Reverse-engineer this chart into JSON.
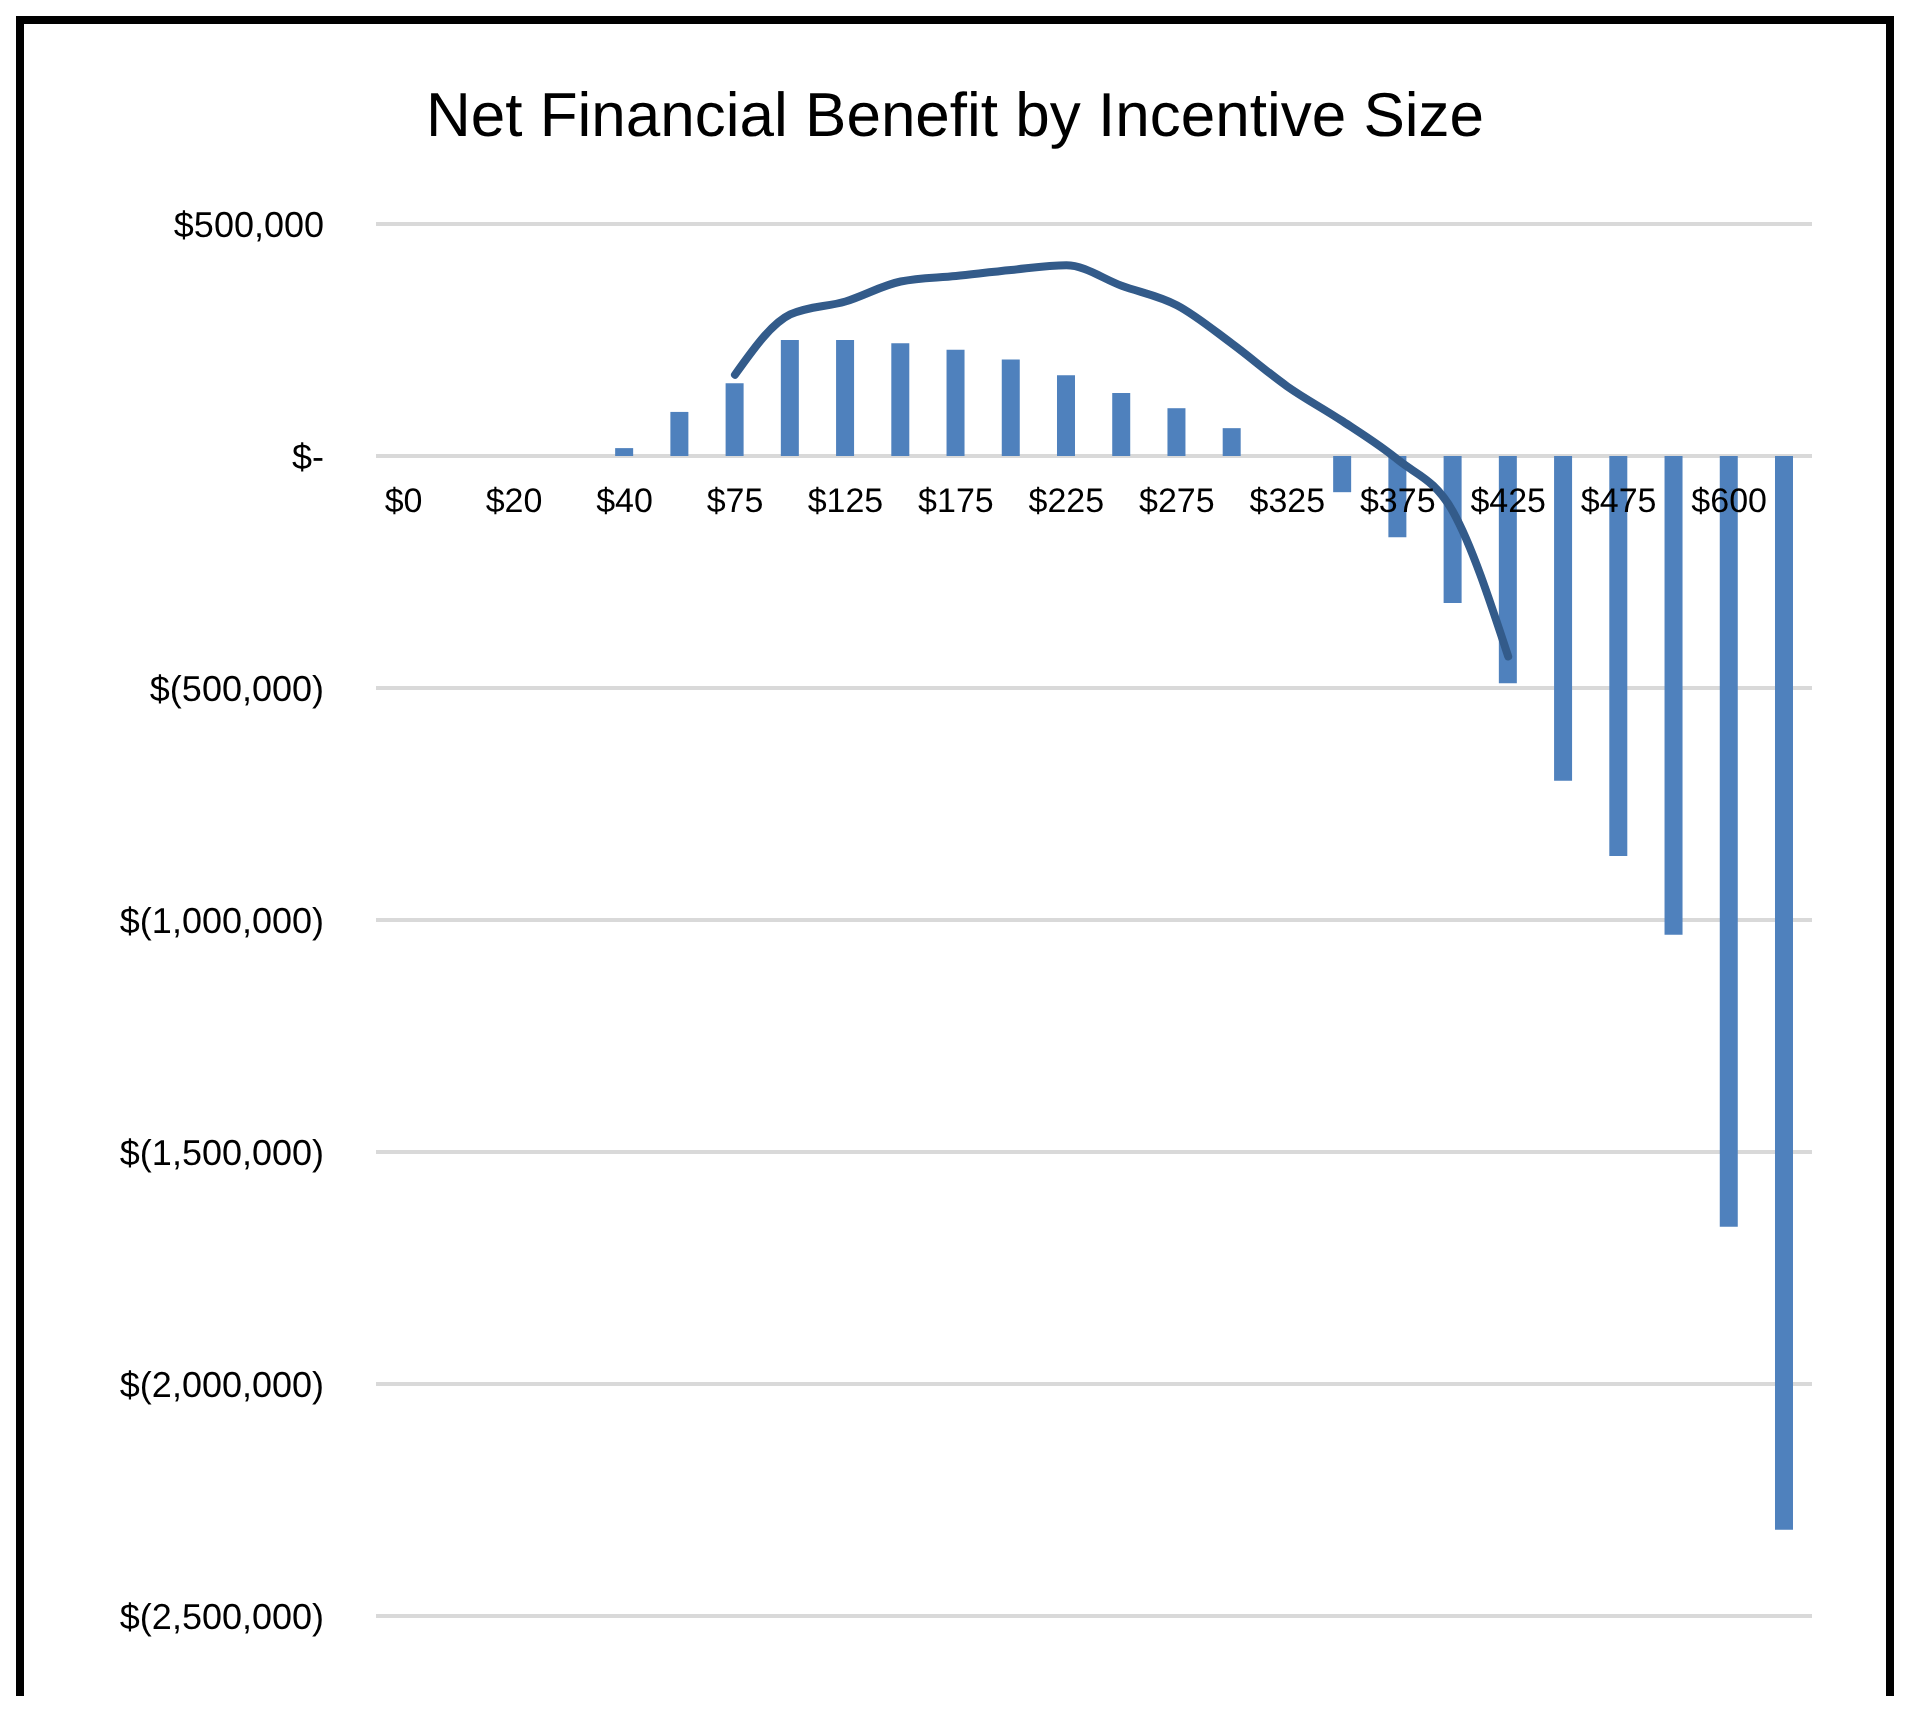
{
  "chart_data": {
    "type": "bar",
    "title": "Net Financial Benefit by Incentive Size",
    "categories": [
      "$0",
      null,
      "$20",
      null,
      "$40",
      null,
      "$75",
      null,
      "$125",
      null,
      "$175",
      null,
      "$225",
      null,
      "$275",
      null,
      "$325",
      null,
      "$375",
      null,
      "$425",
      null,
      "$475",
      null,
      "$600",
      null
    ],
    "series": [
      {
        "color": "#4f81bd",
        "values": [
          0,
          0,
          0,
          0,
          17000,
          95000,
          157000,
          250000,
          250000,
          243000,
          229000,
          208000,
          174000,
          136000,
          103000,
          60000,
          0,
          -78000,
          -175000,
          -317000,
          -490000,
          -700000,
          -862000,
          -1032000,
          -1661000,
          -2314000
        ]
      },
      {
        "type": "line",
        "color": "#335b8a",
        "values": [
          null,
          null,
          null,
          null,
          null,
          null,
          175000,
          305000,
          333000,
          376000,
          388000,
          401000,
          411000,
          367000,
          325000,
          242000,
          150000,
          75000,
          -8000,
          -120000,
          -432000,
          null,
          null,
          null,
          null,
          null
        ]
      }
    ],
    "ylim": [
      -2500000,
      500000
    ],
    "yticks": [
      {
        "value": 500000,
        "label": "$500,000"
      },
      {
        "value": 0,
        "label": "$-"
      },
      {
        "value": -500000,
        "label": "$(500,000)"
      },
      {
        "value": -1000000,
        "label": "$(1,000,000)"
      },
      {
        "value": -1500000,
        "label": "$(1,500,000)"
      },
      {
        "value": -2000000,
        "label": "$(2,000,000)"
      },
      {
        "value": -2500000,
        "label": "$(2,500,000)"
      }
    ],
    "grid": "y",
    "marker": "none",
    "line_style": "solid"
  }
}
